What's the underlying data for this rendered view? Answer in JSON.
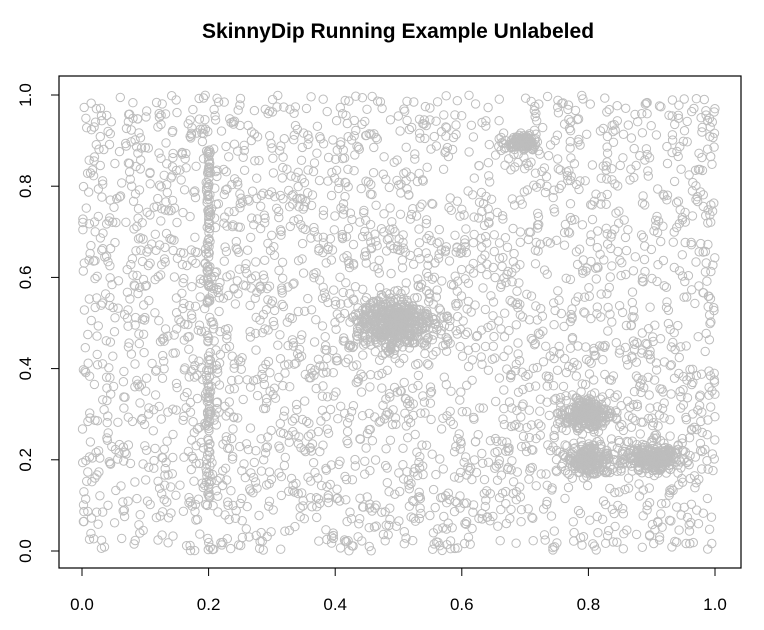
{
  "chart_data": {
    "type": "scatter",
    "title": "SkinnyDip Running Example Unlabeled",
    "xlabel": "",
    "ylabel": "",
    "xlim": [
      0.0,
      1.0
    ],
    "ylim": [
      0.0,
      1.0
    ],
    "x_ticks": [
      "0.0",
      "0.2",
      "0.4",
      "0.6",
      "0.8",
      "1.0"
    ],
    "y_ticks": [
      "0.0",
      "0.2",
      "0.4",
      "0.6",
      "0.8",
      "1.0"
    ],
    "grid": false,
    "legend": "none",
    "marker": "open-circle",
    "point_color": "#bdbdbd",
    "background_noise": {
      "distribution": "uniform",
      "x_range": [
        0.0,
        1.0
      ],
      "y_range": [
        0.0,
        1.0
      ],
      "approx_count": 2900
    },
    "clusters": [
      {
        "shape": "vertical-line",
        "x": 0.2,
        "y_range": [
          0.1,
          0.88
        ],
        "approx_count": 140
      },
      {
        "shape": "blob",
        "x_center": 0.49,
        "y_center": 0.5,
        "x_spread": 0.06,
        "y_spread": 0.055,
        "approx_count": 450
      },
      {
        "shape": "blob",
        "x_center": 0.695,
        "y_center": 0.895,
        "x_spread": 0.022,
        "y_spread": 0.014,
        "approx_count": 120
      },
      {
        "shape": "blob",
        "x_center": 0.8,
        "y_center": 0.3,
        "x_spread": 0.035,
        "y_spread": 0.03,
        "approx_count": 220
      },
      {
        "shape": "blob",
        "x_center": 0.8,
        "y_center": 0.2,
        "x_spread": 0.035,
        "y_spread": 0.03,
        "approx_count": 200
      },
      {
        "shape": "blob",
        "x_center": 0.9,
        "y_center": 0.205,
        "x_spread": 0.04,
        "y_spread": 0.028,
        "approx_count": 250
      }
    ]
  }
}
